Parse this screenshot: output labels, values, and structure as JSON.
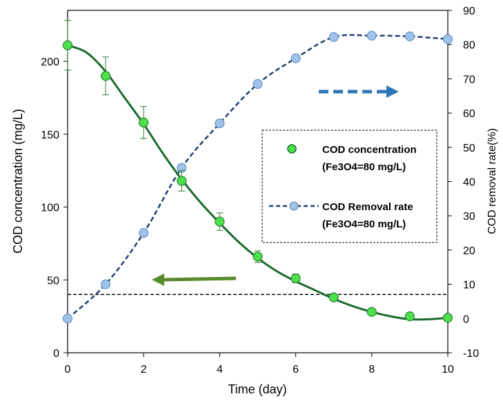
{
  "chart_data": {
    "type": "line",
    "title": "",
    "xlabel": "Time (day)",
    "ylabel_left": "COD concentration (mg/L)",
    "ylabel_right": "COD removal rate(%)",
    "xlim": [
      0,
      10
    ],
    "ylim_left": [
      0,
      235
    ],
    "ylim_right": [
      -10,
      90
    ],
    "x_ticks": [
      0,
      2,
      4,
      6,
      8,
      10
    ],
    "y_left_ticks": [
      0,
      50,
      100,
      150,
      200
    ],
    "y_right_ticks": [
      -10,
      0,
      10,
      20,
      30,
      40,
      50,
      60,
      70,
      80,
      90
    ],
    "grid": false,
    "legend_position": "right-middle",
    "reference_line_left_y": 40,
    "series": [
      {
        "name": "COD concentration (Fe3O4=80 mg/L)",
        "axis": "left",
        "x": [
          0,
          1,
          2,
          3,
          4,
          5,
          6,
          7,
          8,
          9,
          10
        ],
        "values": [
          211,
          190,
          158,
          118,
          90,
          66,
          51,
          38,
          28,
          25,
          24
        ],
        "error": [
          17,
          13,
          11,
          7,
          6,
          4,
          3,
          0,
          0,
          0,
          0
        ],
        "color": "#1a6b2e",
        "marker_fill": "#4ce04c",
        "marker_stroke": "#2e7d32",
        "trendline": [
          [
            0,
            211
          ],
          [
            0.5,
            206
          ],
          [
            1,
            193
          ],
          [
            1.5,
            175
          ],
          [
            2,
            157
          ],
          [
            2.5,
            137
          ],
          [
            3,
            119
          ],
          [
            3.5,
            103
          ],
          [
            4,
            89
          ],
          [
            4.5,
            76
          ],
          [
            5,
            65
          ],
          [
            5.5,
            56
          ],
          [
            6,
            49
          ],
          [
            6.5,
            43
          ],
          [
            7,
            37
          ],
          [
            7.5,
            32
          ],
          [
            8,
            28
          ],
          [
            8.5,
            25
          ],
          [
            9,
            23
          ],
          [
            9.5,
            23
          ],
          [
            10,
            24
          ]
        ]
      },
      {
        "name": "COD Removal rate (Fe3O4=80 mg/L)",
        "axis": "right",
        "x": [
          0,
          1,
          2,
          3,
          4,
          5,
          6,
          7,
          8,
          9,
          10
        ],
        "values": [
          0,
          10,
          25,
          44,
          57,
          68.5,
          76,
          82.2,
          82.6,
          82.4,
          81.6
        ],
        "color": "#1f3e6e",
        "marker_fill": "#9fc3e8",
        "marker_stroke": "#5a86c0"
      }
    ],
    "legend": [
      {
        "line1": "COD concentration",
        "line2": "(Fe3O4=80 mg/L)"
      },
      {
        "line1": "COD Removal rate",
        "line2": "(Fe3O4=80 mg/L)"
      }
    ],
    "annotations": {
      "left_arrow_color": "#5a8a2e",
      "right_arrow_color": "#2e75b6"
    }
  }
}
